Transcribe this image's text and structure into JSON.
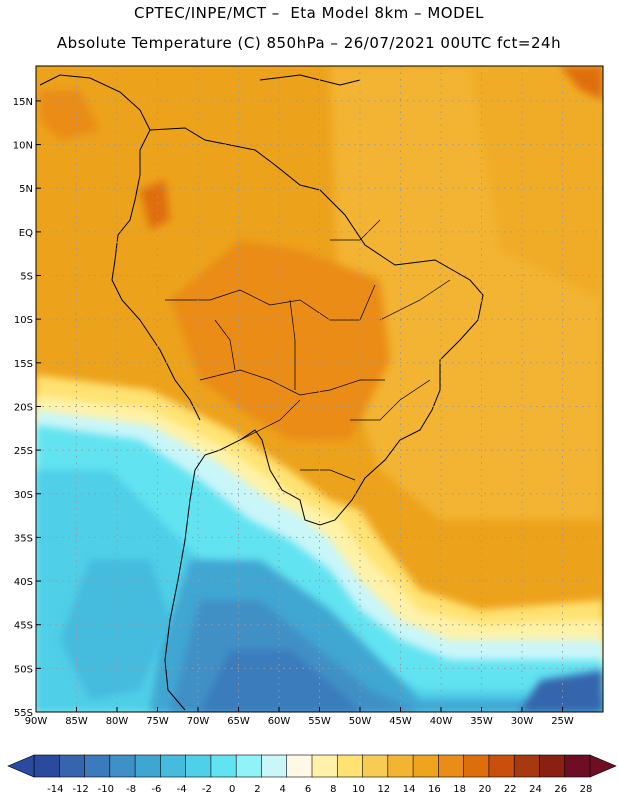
{
  "title": {
    "line1": "CPTEC/INPE/MCT –  Eta Model 8km – MODEL",
    "line2": "Absolute Temperature (C) 850hPa – 26/07/2021 00UTC fct=24h"
  },
  "axes": {
    "lat_labels": [
      "15N",
      "10N",
      "5N",
      "EQ",
      "5S",
      "10S",
      "15S",
      "20S",
      "25S",
      "30S",
      "35S",
      "40S",
      "45S",
      "50S",
      "55S"
    ],
    "lon_labels": [
      "90W",
      "85W",
      "80W",
      "75W",
      "70W",
      "65W",
      "60W",
      "55W",
      "50W",
      "45W",
      "40W",
      "35W",
      "30W",
      "25W"
    ],
    "lat_range": [
      -55,
      19
    ],
    "lon_range": [
      -90,
      -20
    ],
    "grid": "dotted"
  },
  "colorbar": {
    "ticks": [
      "-14",
      "-12",
      "-10",
      "-8",
      "-6",
      "-4",
      "-2",
      "0",
      "2",
      "4",
      "6",
      "8",
      "10",
      "12",
      "14",
      "16",
      "18",
      "20",
      "22",
      "24",
      "26",
      "28"
    ],
    "colors": [
      "#2a4aa0",
      "#3665ad",
      "#3b7bbd",
      "#3f90c6",
      "#3fa6d2",
      "#45bbde",
      "#4fcfe8",
      "#62e3f1",
      "#8ff3f7",
      "#c9f6f9",
      "#fff8e6",
      "#fff2a8",
      "#ffe272",
      "#f8cc52",
      "#f2b431",
      "#eea41c",
      "#ea8c18",
      "#de6e0c",
      "#c9500c",
      "#a83810",
      "#8a2012",
      "#6e0e24"
    ]
  }
}
